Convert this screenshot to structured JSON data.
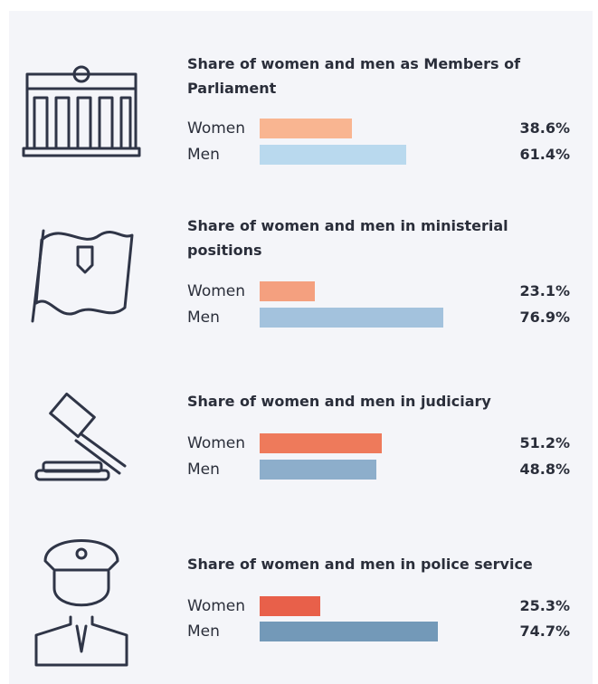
{
  "chart_data": [
    {
      "type": "bar",
      "title": "Share of women and men as Members of Parliament",
      "categories": [
        "Women",
        "Men"
      ],
      "values": [
        38.6,
        61.4
      ],
      "value_labels": [
        "38.6%",
        "61.4%"
      ],
      "colors": [
        "#f9b591",
        "#b9d9ee"
      ]
    },
    {
      "type": "bar",
      "title": "Share of women and men in ministerial positions",
      "categories": [
        "Women",
        "Men"
      ],
      "values": [
        23.1,
        76.9
      ],
      "value_labels": [
        "23.1%",
        "76.9%"
      ],
      "colors": [
        "#f4a07f",
        "#a3c2dd"
      ]
    },
    {
      "type": "bar",
      "title": "Share of women and men in judiciary",
      "categories": [
        "Women",
        "Men"
      ],
      "values": [
        51.2,
        48.8
      ],
      "value_labels": [
        "51.2%",
        "48.8%"
      ],
      "colors": [
        "#ee7a5b",
        "#8daecb"
      ]
    },
    {
      "type": "bar",
      "title": "Share of women and men in police service",
      "categories": [
        "Women",
        "Men"
      ],
      "values": [
        25.3,
        74.7
      ],
      "value_labels": [
        "25.3%",
        "74.7%"
      ],
      "colors": [
        "#e8604a",
        "#7399b8"
      ]
    }
  ]
}
